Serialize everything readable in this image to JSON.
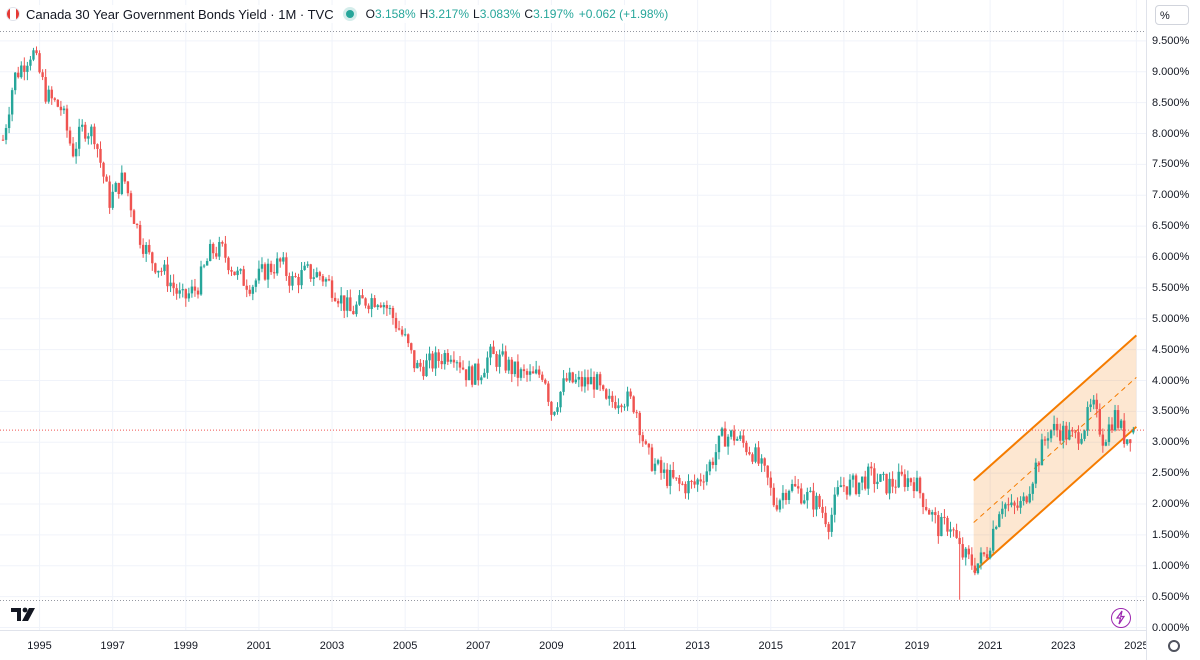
{
  "header": {
    "title": "Canada 30 Year Government Bonds Yield · 1M · TVC",
    "open_label": "O",
    "open": "3.158%",
    "high_label": "H",
    "high": "3.217%",
    "low_label": "L",
    "low": "3.083%",
    "close_label": "C",
    "close": "3.197%",
    "change": "+0.062 (+1.98%)"
  },
  "axis": {
    "unit": "%"
  },
  "colors": {
    "up": "#26a69a",
    "down": "#ef5350",
    "channel": "#f57c00",
    "last_price_line": "#ef5350"
  },
  "chart_data": {
    "type": "candlestick",
    "title": "Canada 30 Year Government Bonds Yield",
    "interval": "1M",
    "source": "TVC",
    "x_range": [
      1994.0,
      2025.1
    ],
    "ylim": [
      0.0,
      9.7
    ],
    "y_ticks": [
      "0.000%",
      "0.500%",
      "1.000%",
      "1.500%",
      "2.000%",
      "2.500%",
      "3.000%",
      "3.500%",
      "4.000%",
      "4.500%",
      "5.000%",
      "5.500%",
      "6.000%",
      "6.500%",
      "7.000%",
      "7.500%",
      "8.000%",
      "8.500%",
      "9.000%",
      "9.500%"
    ],
    "y_tick_values": [
      0,
      0.5,
      1,
      1.5,
      2,
      2.5,
      3,
      3.5,
      4,
      4.5,
      5,
      5.5,
      6,
      6.5,
      7,
      7.5,
      8,
      8.5,
      9,
      9.5
    ],
    "x_ticks": [
      "1995",
      "1997",
      "1999",
      "2001",
      "2003",
      "2005",
      "2007",
      "2009",
      "2011",
      "2013",
      "2015",
      "2017",
      "2019",
      "2021",
      "2023",
      "2025"
    ],
    "x_tick_values": [
      1995,
      1997,
      1999,
      2001,
      2003,
      2005,
      2007,
      2009,
      2011,
      2013,
      2015,
      2017,
      2019,
      2021,
      2023,
      2025
    ],
    "close_anchors": [
      [
        1994.0,
        7.9
      ],
      [
        1994.3,
        8.9
      ],
      [
        1994.8,
        9.35
      ],
      [
        1995.2,
        8.6
      ],
      [
        1995.6,
        8.4
      ],
      [
        1995.9,
        7.7
      ],
      [
        1996.2,
        8.1
      ],
      [
        1996.5,
        8.0
      ],
      [
        1996.9,
        6.9
      ],
      [
        1997.3,
        7.3
      ],
      [
        1997.7,
        6.4
      ],
      [
        1998.0,
        6.0
      ],
      [
        1998.4,
        5.75
      ],
      [
        1998.9,
        5.3
      ],
      [
        1999.3,
        5.5
      ],
      [
        1999.7,
        6.1
      ],
      [
        2000.0,
        6.1
      ],
      [
        2000.4,
        5.7
      ],
      [
        2000.8,
        5.55
      ],
      [
        2001.2,
        5.8
      ],
      [
        2001.6,
        5.9
      ],
      [
        2001.9,
        5.6
      ],
      [
        2002.3,
        5.75
      ],
      [
        2002.7,
        5.7
      ],
      [
        2003.1,
        5.45
      ],
      [
        2003.5,
        5.1
      ],
      [
        2003.9,
        5.3
      ],
      [
        2004.3,
        5.35
      ],
      [
        2004.6,
        5.1
      ],
      [
        2005.0,
        4.65
      ],
      [
        2005.3,
        4.2
      ],
      [
        2005.8,
        4.3
      ],
      [
        2006.3,
        4.5
      ],
      [
        2006.7,
        4.1
      ],
      [
        2007.0,
        4.1
      ],
      [
        2007.3,
        4.4
      ],
      [
        2007.7,
        4.3
      ],
      [
        2008.1,
        4.1
      ],
      [
        2008.5,
        4.05
      ],
      [
        2008.8,
        4.15
      ],
      [
        2009.0,
        3.5
      ],
      [
        2009.4,
        4.0
      ],
      [
        2009.8,
        3.95
      ],
      [
        2010.2,
        4.0
      ],
      [
        2010.5,
        3.6
      ],
      [
        2010.9,
        3.75
      ],
      [
        2011.3,
        3.6
      ],
      [
        2011.6,
        2.8
      ],
      [
        2012.0,
        2.5
      ],
      [
        2012.5,
        2.3
      ],
      [
        2012.9,
        2.3
      ],
      [
        2013.3,
        2.6
      ],
      [
        2013.7,
        3.1
      ],
      [
        2014.0,
        3.1
      ],
      [
        2014.5,
        2.85
      ],
      [
        2014.9,
        2.4
      ],
      [
        2015.1,
        2.0
      ],
      [
        2015.5,
        2.3
      ],
      [
        2015.9,
        2.15
      ],
      [
        2016.3,
        2.0
      ],
      [
        2016.6,
        1.7
      ],
      [
        2016.9,
        2.3
      ],
      [
        2017.3,
        2.3
      ],
      [
        2017.7,
        2.45
      ],
      [
        2018.2,
        2.3
      ],
      [
        2018.6,
        2.4
      ],
      [
        2018.9,
        2.4
      ],
      [
        2019.2,
        2.05
      ],
      [
        2019.6,
        1.6
      ],
      [
        2019.9,
        1.7
      ],
      [
        2020.2,
        1.2
      ],
      [
        2020.6,
        1.0
      ],
      [
        2020.9,
        1.2
      ],
      [
        2021.3,
        2.05
      ],
      [
        2021.6,
        1.9
      ],
      [
        2021.9,
        2.0
      ],
      [
        2022.3,
        2.7
      ],
      [
        2022.6,
        3.2
      ],
      [
        2022.9,
        3.2
      ],
      [
        2023.3,
        3.05
      ],
      [
        2023.6,
        3.3
      ],
      [
        2023.8,
        3.6
      ],
      [
        2024.1,
        3.05
      ],
      [
        2024.4,
        3.45
      ],
      [
        2024.7,
        3.05
      ],
      [
        2024.9,
        3.197
      ]
    ],
    "last_price": 3.197,
    "annotations": {
      "regression_channel": {
        "start": [
          2020.55,
          1.7
        ],
        "end": [
          2025.0,
          4.05
        ],
        "upper_offset": 0.68,
        "lower_offset": 0.8
      }
    }
  }
}
